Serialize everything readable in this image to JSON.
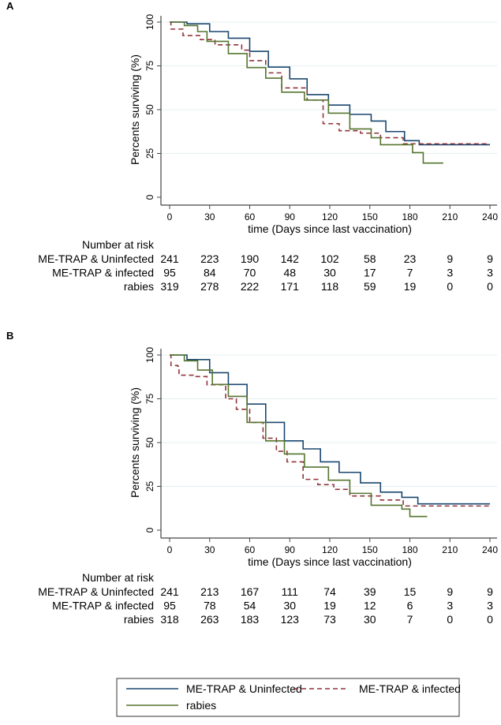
{
  "colors": {
    "uninfected": "#1a476f",
    "infected": "#90353b",
    "rabies": "#55752f",
    "grid": "#e6eff1",
    "axis": "#444444"
  },
  "legend": [
    {
      "label": "ME-TRAP & Uninfected",
      "color": "#1a476f",
      "style": "solid"
    },
    {
      "label": "ME-TRAP & infected",
      "color": "#90353b",
      "style": "dashed"
    },
    {
      "label": "rabies",
      "color": "#55752f",
      "style": "solid"
    }
  ],
  "chart_data": [
    {
      "type": "line",
      "panel": "A",
      "title": "",
      "xlabel": "time (Days since last vaccination)",
      "ylabel": "Percents surviving (%)",
      "xlim": [
        0,
        240
      ],
      "ylim": [
        0,
        100
      ],
      "xticks": [
        "0",
        "30",
        "60",
        "90",
        "120",
        "150",
        "180",
        "210",
        "240"
      ],
      "yticks": [
        "0",
        "25",
        "50",
        "75",
        "100"
      ],
      "grid": true,
      "series": [
        {
          "name": "ME-TRAP & Uninfected",
          "points": [
            [
              0,
              100
            ],
            [
              13,
              99
            ],
            [
              30,
              94.6
            ],
            [
              44,
              90.8
            ],
            [
              60,
              83.3
            ],
            [
              74,
              74.3
            ],
            [
              90,
              67.6
            ],
            [
              103,
              58.6
            ],
            [
              119,
              52.6
            ],
            [
              135,
              47.3
            ],
            [
              151,
              43.5
            ],
            [
              162,
              37.5
            ],
            [
              176,
              32.3
            ],
            [
              187,
              30
            ],
            [
              240,
              30
            ]
          ]
        },
        {
          "name": "ME-TRAP & infected",
          "points": [
            [
              0,
              100
            ],
            [
              1,
              96
            ],
            [
              10,
              92.3
            ],
            [
              23,
              90
            ],
            [
              34,
              87
            ],
            [
              54,
              84
            ],
            [
              60,
              78
            ],
            [
              72,
              71
            ],
            [
              84,
              62.4
            ],
            [
              103,
              55.5
            ],
            [
              115,
              42
            ],
            [
              127,
              38
            ],
            [
              143,
              36.6
            ],
            [
              158,
              34
            ],
            [
              175,
              30.5
            ],
            [
              240,
              30.5
            ]
          ]
        },
        {
          "name": "rabies",
          "points": [
            [
              0,
              100
            ],
            [
              11,
              98
            ],
            [
              21,
              94.6
            ],
            [
              28,
              89
            ],
            [
              44,
              82
            ],
            [
              58,
              74
            ],
            [
              72,
              68
            ],
            [
              84,
              60
            ],
            [
              101,
              55.5
            ],
            [
              119,
              48
            ],
            [
              135,
              39
            ],
            [
              151,
              34
            ],
            [
              158,
              30
            ],
            [
              182,
              25.5
            ],
            [
              190,
              19.5
            ],
            [
              205,
              19.5
            ]
          ]
        }
      ],
      "risk_table": {
        "title": "Number at risk",
        "rows": [
          {
            "label": "ME-TRAP & Uninfected",
            "values": [
              "241",
              "223",
              "190",
              "142",
              "102",
              "58",
              "23",
              "9",
              "9"
            ]
          },
          {
            "label": "ME-TRAP & infected",
            "values": [
              "95",
              "84",
              "70",
              "48",
              "30",
              "17",
              "7",
              "3",
              "3"
            ]
          },
          {
            "label": "rabies",
            "values": [
              "319",
              "278",
              "222",
              "171",
              "118",
              "59",
              "19",
              "0",
              "0"
            ]
          }
        ]
      }
    },
    {
      "type": "line",
      "panel": "B",
      "title": "",
      "xlabel": "time (Days since last vaccination)",
      "ylabel": "Percents surviving (%)",
      "xlim": [
        0,
        240
      ],
      "ylim": [
        0,
        100
      ],
      "xticks": [
        "0",
        "30",
        "60",
        "90",
        "120",
        "150",
        "180",
        "210",
        "240"
      ],
      "yticks": [
        "0",
        "25",
        "50",
        "75",
        "100"
      ],
      "grid": true,
      "series": [
        {
          "name": "ME-TRAP & Uninfected",
          "points": [
            [
              0,
              100
            ],
            [
              13,
              97.4
            ],
            [
              30,
              89.9
            ],
            [
              44,
              83.2
            ],
            [
              58,
              72
            ],
            [
              72,
              61.5
            ],
            [
              86,
              51
            ],
            [
              100,
              46.4
            ],
            [
              113,
              39
            ],
            [
              127,
              33
            ],
            [
              143,
              27
            ],
            [
              158,
              21.7
            ],
            [
              174,
              18.7
            ],
            [
              186,
              15
            ],
            [
              240,
              15
            ]
          ]
        },
        {
          "name": "ME-TRAP & infected",
          "points": [
            [
              0,
              100
            ],
            [
              1,
              94
            ],
            [
              6,
              93.6
            ],
            [
              7,
              88.5
            ],
            [
              19,
              87.7
            ],
            [
              28,
              83
            ],
            [
              42,
              75
            ],
            [
              50,
              69
            ],
            [
              60,
              61.5
            ],
            [
              70,
              52.5
            ],
            [
              80,
              45
            ],
            [
              88,
              39
            ],
            [
              100,
              29
            ],
            [
              111,
              26
            ],
            [
              123,
              23.3
            ],
            [
              135,
              19.5
            ],
            [
              158,
              17.2
            ],
            [
              175,
              13.8
            ],
            [
              240,
              13.8
            ]
          ]
        },
        {
          "name": "rabies",
          "points": [
            [
              0,
              100
            ],
            [
              11,
              96.7
            ],
            [
              21,
              91.4
            ],
            [
              32,
              83.2
            ],
            [
              44,
              76.4
            ],
            [
              58,
              61.5
            ],
            [
              72,
              51
            ],
            [
              86,
              43.5
            ],
            [
              101,
              36
            ],
            [
              119,
              28.5
            ],
            [
              135,
              21
            ],
            [
              151,
              14.2
            ],
            [
              174,
              12
            ],
            [
              180,
              7.8
            ],
            [
              193,
              7.8
            ]
          ]
        }
      ],
      "risk_table": {
        "title": "Number at risk",
        "rows": [
          {
            "label": "ME-TRAP & Uninfected",
            "values": [
              "241",
              "213",
              "167",
              "111",
              "74",
              "39",
              "15",
              "9",
              "9"
            ]
          },
          {
            "label": "ME-TRAP & infected",
            "values": [
              "95",
              "78",
              "54",
              "30",
              "19",
              "12",
              "6",
              "3",
              "3"
            ]
          },
          {
            "label": "rabies",
            "values": [
              "318",
              "263",
              "183",
              "123",
              "73",
              "30",
              "7",
              "0",
              "0"
            ]
          }
        ]
      }
    }
  ]
}
